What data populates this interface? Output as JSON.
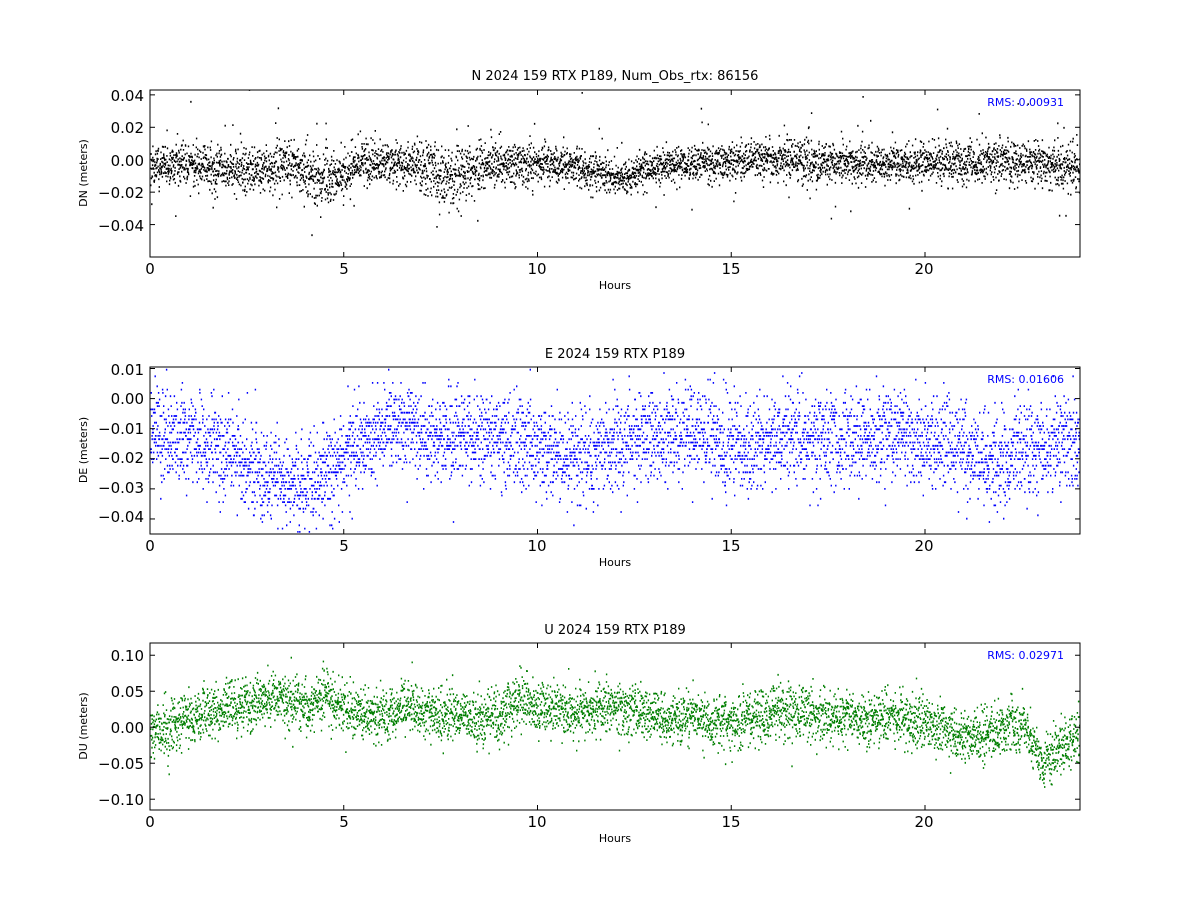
{
  "chart_data": [
    {
      "type": "scatter",
      "title": "N 2024 159 RTX  P189, Num_Obs_rtx: 86156",
      "xlabel": "Hours",
      "ylabel": "DN (meters)",
      "xlim": [
        0,
        24
      ],
      "ylim": [
        -0.06,
        0.043
      ],
      "xticks": [
        "0",
        "5",
        "10",
        "15",
        "20"
      ],
      "yticks": [
        "0.04",
        "0.02",
        "0.00",
        "−0.02",
        "−0.04"
      ],
      "color": "#000000",
      "rms_label": "RMS:  0.00931",
      "grid": false,
      "series": [
        {
          "x": [
            0,
            0.5,
            1,
            1.5,
            2,
            2.5,
            3,
            3.5,
            4,
            4.5,
            5,
            5.5,
            6,
            6.5,
            7,
            7.5,
            8,
            8.5,
            9,
            9.5,
            10,
            10.5,
            11,
            11.5,
            12,
            12.5,
            13,
            13.5,
            14,
            14.5,
            15,
            15.5,
            16,
            16.5,
            17,
            17.5,
            18,
            18.5,
            19,
            19.5,
            20,
            20.5,
            21,
            21.5,
            22,
            22.5,
            23,
            23.5,
            24
          ],
          "center": [
            -0.004,
            -0.003,
            -0.002,
            -0.004,
            -0.006,
            -0.005,
            -0.004,
            -0.003,
            -0.008,
            -0.012,
            -0.008,
            -0.002,
            -0.001,
            -0.002,
            -0.004,
            -0.01,
            -0.008,
            -0.004,
            -0.002,
            -0.001,
            -0.002,
            -0.002,
            -0.003,
            -0.006,
            -0.012,
            -0.008,
            -0.004,
            -0.003,
            -0.002,
            -0.002,
            -0.001,
            0.0,
            0.001,
            0.001,
            0.0,
            -0.002,
            -0.002,
            -0.002,
            -0.001,
            -0.002,
            -0.001,
            -0.001,
            -0.001,
            -0.001,
            0.0,
            -0.002,
            -0.002,
            -0.004,
            -0.005
          ],
          "spread": [
            0.011,
            0.011,
            0.011,
            0.012,
            0.012,
            0.012,
            0.013,
            0.013,
            0.016,
            0.018,
            0.014,
            0.011,
            0.011,
            0.012,
            0.014,
            0.017,
            0.016,
            0.014,
            0.013,
            0.012,
            0.011,
            0.011,
            0.01,
            0.01,
            0.009,
            0.009,
            0.009,
            0.009,
            0.009,
            0.009,
            0.01,
            0.011,
            0.011,
            0.012,
            0.012,
            0.011,
            0.01,
            0.01,
            0.01,
            0.01,
            0.01,
            0.011,
            0.011,
            0.012,
            0.012,
            0.012,
            0.012,
            0.012,
            0.012
          ]
        }
      ]
    },
    {
      "type": "scatter",
      "title": "E 2024 159 RTX  P189",
      "xlabel": "Hours",
      "ylabel": "DE (meters)",
      "xlim": [
        0,
        24
      ],
      "ylim": [
        -0.045,
        0.0105
      ],
      "xticks": [
        "0",
        "5",
        "10",
        "15",
        "20"
      ],
      "yticks": [
        "0.01",
        "0.00",
        "−0.01",
        "−0.02",
        "−0.03",
        "−0.04"
      ],
      "color": "#0000ff",
      "rms_label": "RMS:  0.01606",
      "grid": false,
      "series": [
        {
          "x": [
            0,
            0.5,
            1,
            1.5,
            2,
            2.5,
            3,
            3.5,
            4,
            4.5,
            5,
            5.5,
            6,
            6.5,
            7,
            7.5,
            8,
            8.5,
            9,
            9.5,
            10,
            10.5,
            11,
            11.5,
            12,
            12.5,
            13,
            13.5,
            14,
            14.5,
            15,
            15.5,
            16,
            16.5,
            17,
            17.5,
            18,
            18.5,
            19,
            19.5,
            20,
            20.5,
            21,
            21.5,
            22,
            22.5,
            23,
            23.5,
            24
          ],
          "center": [
            -0.011,
            -0.012,
            -0.013,
            -0.014,
            -0.016,
            -0.022,
            -0.026,
            -0.027,
            -0.027,
            -0.024,
            -0.02,
            -0.014,
            -0.01,
            -0.009,
            -0.011,
            -0.013,
            -0.012,
            -0.013,
            -0.014,
            -0.015,
            -0.017,
            -0.018,
            -0.019,
            -0.017,
            -0.015,
            -0.013,
            -0.013,
            -0.012,
            -0.011,
            -0.012,
            -0.014,
            -0.015,
            -0.014,
            -0.012,
            -0.013,
            -0.014,
            -0.013,
            -0.011,
            -0.01,
            -0.012,
            -0.015,
            -0.014,
            -0.016,
            -0.021,
            -0.02,
            -0.017,
            -0.015,
            -0.014,
            -0.013
          ]
        }
      ]
    },
    {
      "type": "scatter",
      "title": "U 2024 159 RTX  P189",
      "xlabel": "Hours",
      "ylabel": "DU (meters)",
      "xlim": [
        0,
        24
      ],
      "ylim": [
        -0.115,
        0.117
      ],
      "xticks": [
        "0",
        "5",
        "10",
        "15",
        "20"
      ],
      "yticks": [
        "0.10",
        "0.05",
        "0.00",
        "−0.05",
        "−0.10"
      ],
      "color": "#007f00",
      "rms_label": "RMS:  0.02971",
      "grid": false,
      "series": [
        {
          "x": [
            0,
            0.5,
            1,
            1.5,
            2,
            2.5,
            3,
            3.5,
            4,
            4.5,
            5,
            5.5,
            6,
            6.5,
            7,
            7.5,
            8,
            8.5,
            9,
            9.5,
            10,
            10.5,
            11,
            11.5,
            12,
            12.5,
            13,
            13.5,
            14,
            14.5,
            15,
            15.5,
            16,
            16.5,
            17,
            17.5,
            18,
            18.5,
            19,
            19.5,
            20,
            20.5,
            21,
            21.5,
            22,
            22.5,
            23,
            23.5,
            24
          ],
          "center": [
            -0.01,
            0.0,
            0.015,
            0.02,
            0.03,
            0.03,
            0.04,
            0.04,
            0.03,
            0.04,
            0.03,
            0.02,
            0.015,
            0.03,
            0.025,
            0.015,
            0.02,
            0.01,
            0.015,
            0.04,
            0.025,
            0.025,
            0.02,
            0.025,
            0.03,
            0.02,
            0.015,
            0.01,
            0.015,
            0.01,
            0.005,
            0.015,
            0.02,
            0.025,
            0.02,
            0.015,
            0.015,
            0.01,
            0.015,
            0.01,
            0.01,
            0.0,
            -0.01,
            -0.01,
            0.0,
            0.01,
            -0.05,
            -0.02,
            -0.01
          ]
        }
      ]
    }
  ]
}
